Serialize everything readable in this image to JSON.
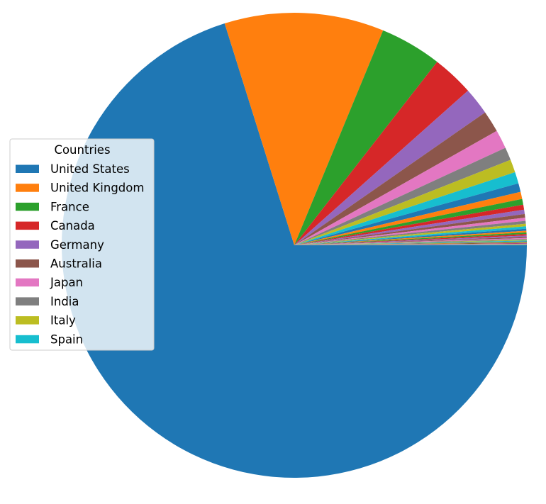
{
  "chart_data": {
    "type": "pie",
    "legend_title": "Countries",
    "legend_placement": "center-left",
    "start_angle_deg": 0,
    "direction": "clockwise",
    "slices": [
      {
        "label": "United States",
        "value": 70.3,
        "color": "#1f77b4"
      },
      {
        "label": "United Kingdom",
        "value": 11.1,
        "color": "#ff7f0e"
      },
      {
        "label": "France",
        "value": 4.3,
        "color": "#2ca02c"
      },
      {
        "label": "Canada",
        "value": 2.9,
        "color": "#d62728"
      },
      {
        "label": "Germany",
        "value": 1.9,
        "color": "#9467bd"
      },
      {
        "label": "Australia",
        "value": 1.5,
        "color": "#8c564b"
      },
      {
        "label": "Japan",
        "value": 1.3,
        "color": "#e377c2"
      },
      {
        "label": "India",
        "value": 0.9,
        "color": "#7f7f7f"
      },
      {
        "label": "Italy",
        "value": 0.9,
        "color": "#bcbd22"
      },
      {
        "label": "Spain",
        "value": 0.8,
        "color": "#17becf"
      },
      {
        "value": 0.6,
        "color": "#1f77b4"
      },
      {
        "value": 0.5,
        "color": "#ff7f0e"
      },
      {
        "value": 0.4,
        "color": "#2ca02c"
      },
      {
        "value": 0.35,
        "color": "#d62728"
      },
      {
        "value": 0.3,
        "color": "#9467bd"
      },
      {
        "value": 0.25,
        "color": "#8c564b"
      },
      {
        "value": 0.22,
        "color": "#e377c2"
      },
      {
        "value": 0.2,
        "color": "#7f7f7f"
      },
      {
        "value": 0.18,
        "color": "#bcbd22"
      },
      {
        "value": 0.16,
        "color": "#17becf"
      },
      {
        "value": 0.14,
        "color": "#1f77b4"
      },
      {
        "value": 0.12,
        "color": "#ff7f0e"
      },
      {
        "value": 0.11,
        "color": "#2ca02c"
      },
      {
        "value": 0.1,
        "color": "#d62728"
      },
      {
        "value": 0.09,
        "color": "#9467bd"
      },
      {
        "value": 0.08,
        "color": "#8c564b"
      },
      {
        "value": 0.07,
        "color": "#e377c2"
      },
      {
        "value": 0.06,
        "color": "#7f7f7f"
      },
      {
        "value": 0.05,
        "color": "#bcbd22"
      },
      {
        "value": 0.05,
        "color": "#17becf"
      },
      {
        "value": 0.04,
        "color": "#1f77b4"
      },
      {
        "value": 0.04,
        "color": "#ff7f0e"
      },
      {
        "value": 0.03,
        "color": "#2ca02c"
      },
      {
        "value": 0.03,
        "color": "#d62728"
      },
      {
        "value": 0.03,
        "color": "#9467bd"
      },
      {
        "value": 0.02,
        "color": "#8c564b"
      },
      {
        "value": 0.02,
        "color": "#e377c2"
      },
      {
        "value": 0.02,
        "color": "#7f7f7f"
      },
      {
        "value": 0.02,
        "color": "#bcbd22"
      },
      {
        "value": 0.02,
        "color": "#17becf"
      }
    ]
  }
}
